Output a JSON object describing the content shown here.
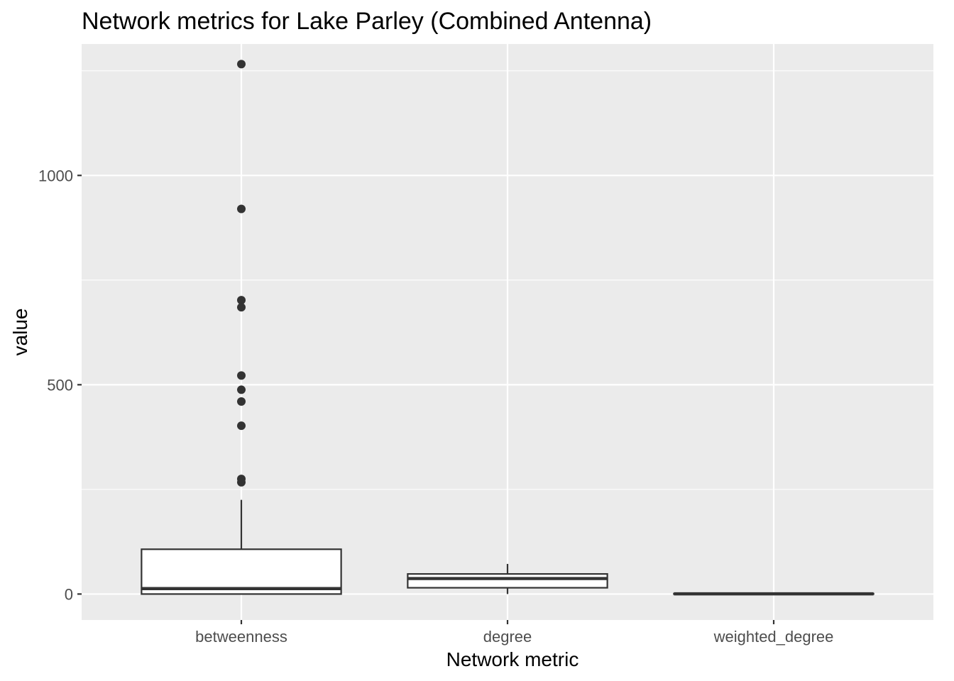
{
  "chart_data": {
    "type": "boxplot",
    "title": "Network metrics for Lake Parley (Combined Antenna)",
    "xlabel": "Network metric",
    "ylabel": "value",
    "ylim": [
      -62,
      1314
    ],
    "yticks": [
      0,
      500,
      1000
    ],
    "y_minor_gridlines": [
      250,
      750,
      1250
    ],
    "grid": true,
    "colors": {
      "panel": "#EBEBEB",
      "grid": "#FFFFFF",
      "box_fill": "#FFFFFF",
      "box_line": "#333333",
      "outlier": "#333333"
    },
    "categories": [
      "betweenness",
      "degree",
      "weighted_degree"
    ],
    "boxes": [
      {
        "category": "betweenness",
        "whisker_low": 0,
        "q1": 0,
        "median": 13,
        "q3": 107,
        "whisker_high": 225,
        "outliers": [
          1266,
          920,
          702,
          685,
          522,
          488,
          460,
          402,
          275,
          267
        ]
      },
      {
        "category": "degree",
        "whisker_low": 0,
        "q1": 15,
        "median": 37,
        "q3": 48,
        "whisker_high": 72,
        "outliers": []
      },
      {
        "category": "weighted_degree",
        "whisker_low": 0,
        "q1": 0,
        "median": 0.5,
        "q3": 1,
        "whisker_high": 1,
        "outliers": []
      }
    ]
  }
}
